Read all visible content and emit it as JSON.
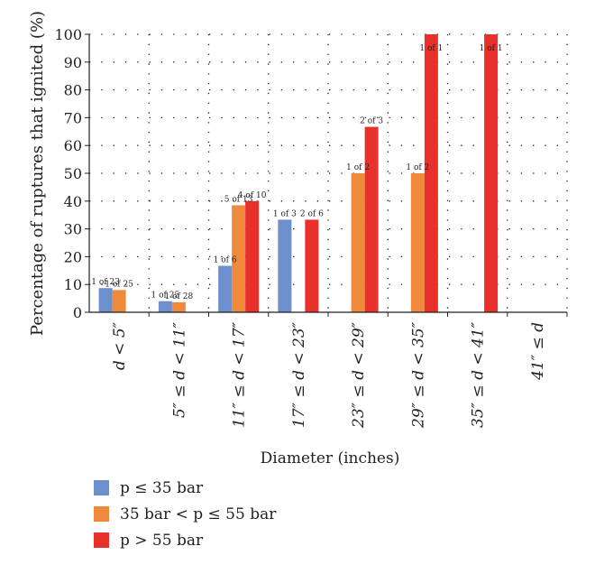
{
  "chart_data": {
    "type": "bar",
    "ylabel": "Percentage of ruptures that ignited (%)",
    "xlabel": "Diameter (inches)",
    "ylim": [
      0,
      100
    ],
    "yticks": [
      0,
      10,
      20,
      30,
      40,
      50,
      60,
      70,
      80,
      90,
      100
    ],
    "grid": true,
    "legend_position": "bottom",
    "categories": [
      "d < 5″",
      "5″ ≤ d < 11″",
      "11″ ≤ d < 17″",
      "17″ ≤ d < 23″",
      "23″ ≤ d < 29″",
      "29″ ≤ d < 35″",
      "35″ ≤ d < 41″",
      "41″ ≤ d"
    ],
    "series": [
      {
        "name": "p ≤ 35 bar",
        "color": "#6d8fcb",
        "values": [
          8.7,
          4,
          16.7,
          33.3,
          0,
          0,
          0,
          0
        ],
        "labels": [
          "1 of 23",
          "1 of 25",
          "1 of 6",
          "1 of 3",
          "",
          "",
          "",
          ""
        ]
      },
      {
        "name": "35 bar < p ≤ 55 bar",
        "color": "#ef8a3c",
        "values": [
          8,
          3.6,
          38.5,
          0,
          50,
          50,
          0,
          0
        ],
        "labels": [
          "1 of 25",
          "1 of 28",
          "5 of 13",
          "",
          "1 of 2",
          "1 of 2",
          "",
          ""
        ]
      },
      {
        "name": "p > 55 bar",
        "color": "#e8312a",
        "values": [
          0,
          0,
          40,
          33.3,
          66.7,
          100,
          100,
          0
        ],
        "labels": [
          "",
          "",
          "4 of 10",
          "2 of 6",
          "2 of 3",
          "1 of 1",
          "1 of 1",
          ""
        ]
      }
    ]
  }
}
